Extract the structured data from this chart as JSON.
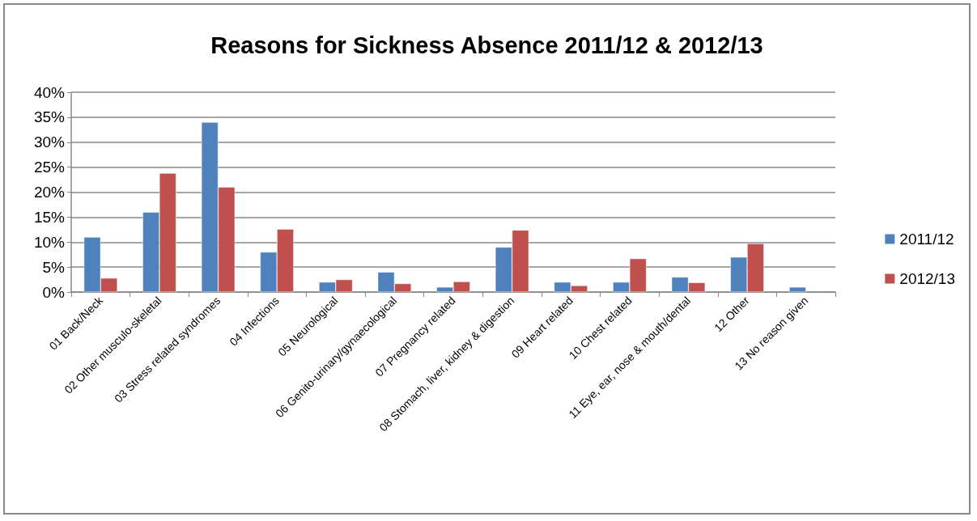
{
  "chart_data": {
    "type": "bar",
    "title": "Reasons for Sickness Absence 2011/12 & 2012/13",
    "categories": [
      "01 Back/Neck",
      "02 Other musculo-skeletal",
      "03 Stress related syndromes",
      "04 Infections",
      "05 Neurological",
      "06 Genito-urinary/gynaecological",
      "07 Pregnancy related",
      "08 Stomach, liver, kidney & digestion",
      "09 Heart related",
      "10 Chest related",
      "11 Eye, ear, nose & mouth/dental",
      "12 Other",
      "13 No reason given"
    ],
    "series": [
      {
        "name": "2011/12",
        "color": "#4f81bd",
        "values": [
          11,
          16,
          34,
          8,
          2,
          4,
          1,
          9,
          2,
          2,
          3,
          7,
          1
        ]
      },
      {
        "name": "2012/13",
        "color": "#c0504d",
        "values": [
          2.8,
          23.8,
          21,
          12.6,
          2.5,
          1.7,
          2.1,
          12.4,
          1.3,
          6.7,
          1.9,
          9.7,
          null
        ]
      }
    ],
    "ylim": [
      0,
      40
    ],
    "yticks": [
      {
        "value": 0,
        "label": "0%"
      },
      {
        "value": 5,
        "label": "5%"
      },
      {
        "value": 10,
        "label": "10%"
      },
      {
        "value": 15,
        "label": "15%"
      },
      {
        "value": 20,
        "label": "20%"
      },
      {
        "value": 25,
        "label": "25%"
      },
      {
        "value": 30,
        "label": "30%"
      },
      {
        "value": 35,
        "label": "35%"
      },
      {
        "value": 40,
        "label": "40%"
      }
    ],
    "grid": "y",
    "legend": "right"
  }
}
